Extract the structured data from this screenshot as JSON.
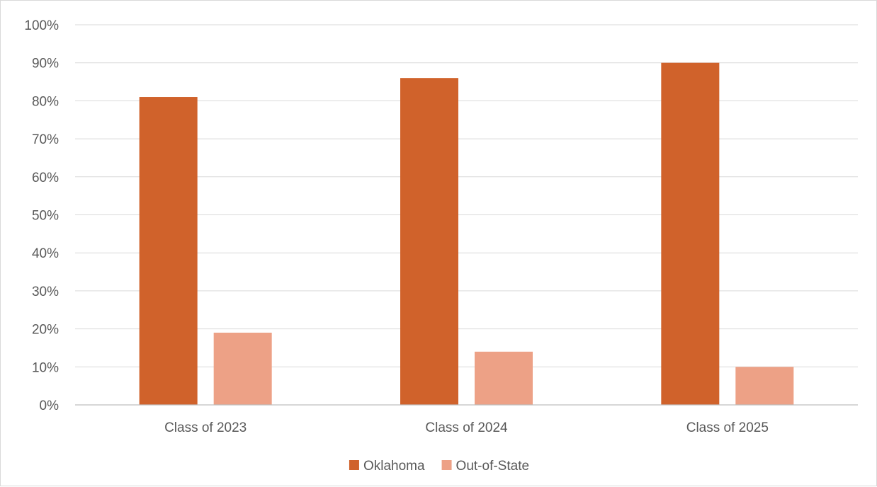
{
  "chart_data": {
    "type": "bar",
    "title": "",
    "xlabel": "",
    "ylabel": "",
    "categories": [
      "Class of 2023",
      "Class of 2024",
      "Class of 2025"
    ],
    "series": [
      {
        "name": "Oklahoma",
        "color": "#D0622B",
        "values": [
          81,
          86,
          90
        ]
      },
      {
        "name": "Out-of-State",
        "color": "#EDA186",
        "values": [
          19,
          14,
          10
        ]
      }
    ],
    "ylim": [
      0,
      100
    ],
    "yticks": [
      "0%",
      "10%",
      "20%",
      "30%",
      "40%",
      "50%",
      "60%",
      "70%",
      "80%",
      "90%",
      "100%"
    ],
    "grid": true,
    "legend_position": "bottom"
  }
}
